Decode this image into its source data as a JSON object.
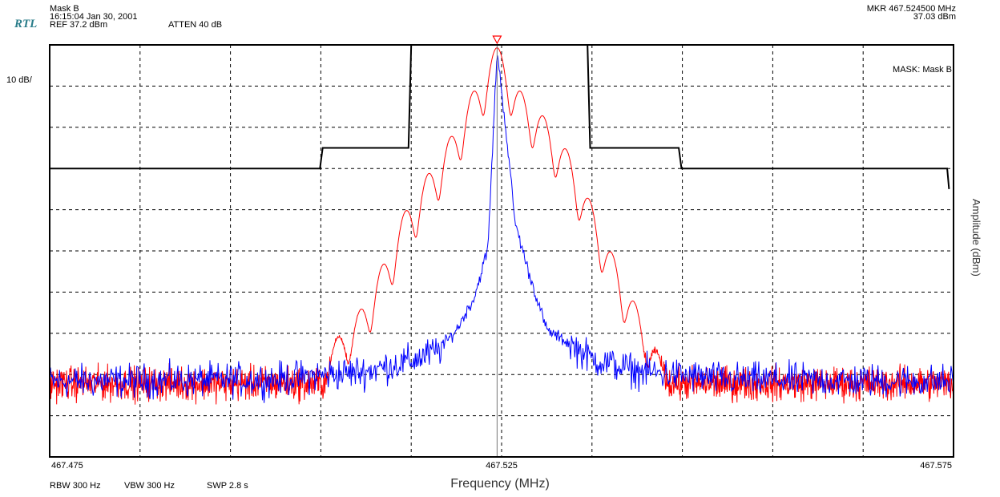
{
  "header": {
    "logo": "RTL",
    "mask_title": "Mask B",
    "timestamp": "16:15:04 Jan 30, 2001",
    "ref": "REF 37.2 dBm",
    "atten": "ATTEN 40  dB",
    "marker_freq": "MKR  467.524500 MHz",
    "marker_amp": "37.03 dBm",
    "scale": "10 dB/",
    "mask_label": "MASK: Mask B"
  },
  "footer": {
    "rbw": "RBW 300 Hz",
    "vbw": "VBW 300 Hz",
    "swp": "SWP 2.8 s"
  },
  "colors": {
    "red_trace": "#ff0000",
    "blue_trace": "#0000ff",
    "mask": "#000000",
    "logo": "#2a7d8a"
  },
  "chart_data": {
    "type": "line",
    "xlabel": "Frequency (MHz)",
    "ylabel": "Amplitude (dBm)",
    "xlim": [
      467.475,
      467.575
    ],
    "ylim": [
      -62.8,
      37.2
    ],
    "x_ticks": [
      "467.475",
      "467.525",
      "467.575"
    ],
    "grid": true,
    "marker": {
      "x": 467.5245,
      "y": 37.03
    },
    "mask": {
      "x": [
        467.475,
        467.5049,
        467.5052,
        467.5147,
        467.515,
        467.5345,
        467.5348,
        467.5446,
        467.5449,
        467.5743,
        467.5745
      ],
      "y": [
        7.2,
        7.2,
        12.2,
        12.2,
        37.2,
        37.2,
        12.2,
        12.2,
        7.2,
        7.2,
        2.2
      ]
    },
    "series": [
      {
        "color": "#0000ff",
        "noise_floor": -44.5,
        "x": [
          467.475,
          467.5,
          467.51,
          467.515,
          467.518,
          467.52,
          467.522,
          467.5235,
          467.5245,
          467.5255,
          467.5265,
          467.528,
          467.53,
          467.533,
          467.535,
          467.54,
          467.55,
          467.575
        ],
        "y": [
          -44.5,
          -44.0,
          -42.0,
          -39.5,
          -37.0,
          -32.0,
          -24.0,
          -12.0,
          36.0,
          16.0,
          -6.0,
          -18.0,
          -32.0,
          -36.0,
          -39.0,
          -42.0,
          -44.0,
          -44.5
        ]
      },
      {
        "color": "#ff0000",
        "noise_floor": -45.0,
        "carrier_x": 467.5245,
        "carrier_y": 36.5,
        "sideband_spacing": 0.0025,
        "sidebands": [
          {
            "n": -7,
            "y": -34.0
          },
          {
            "n": -6,
            "y": -27.0
          },
          {
            "n": -5,
            "y": -16.0
          },
          {
            "n": -4,
            "y": -3.0
          },
          {
            "n": -3,
            "y": 6.0
          },
          {
            "n": -2,
            "y": 15.0
          },
          {
            "n": -1,
            "y": 26.0
          },
          {
            "n": 1,
            "y": 26.0
          },
          {
            "n": 2,
            "y": 20.0
          },
          {
            "n": 3,
            "y": 12.0
          },
          {
            "n": 4,
            "y": 0.0
          },
          {
            "n": 5,
            "y": -13.0
          },
          {
            "n": 6,
            "y": -25.0
          },
          {
            "n": 7,
            "y": -38.0
          }
        ]
      }
    ]
  }
}
